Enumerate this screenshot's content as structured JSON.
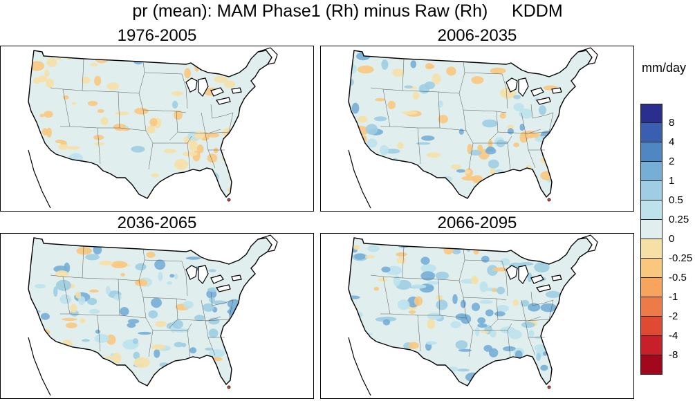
{
  "title": "pr (mean): MAM Phase1 (Rh) minus Raw (Rh)     KDDM",
  "units": "mm/day",
  "panels": [
    {
      "label": "1976-2005",
      "pattern": "mostly-dry"
    },
    {
      "label": "2006-2035",
      "pattern": "mixed"
    },
    {
      "label": "2036-2065",
      "pattern": "wetter-southeast"
    },
    {
      "label": "2066-2095",
      "pattern": "wettest-southeast"
    }
  ],
  "legend": {
    "colors": [
      "#2a2f8f",
      "#3a5fb0",
      "#4f86c3",
      "#76aed6",
      "#9fcde3",
      "#bde2ec",
      "#e0efee",
      "#f6e0a6",
      "#f9c77e",
      "#f8a45d",
      "#ee7a48",
      "#e04a33",
      "#c8202a",
      "#a1081e"
    ],
    "labels": [
      "8",
      "4",
      "2",
      "1",
      "0.5",
      "0.25",
      "0",
      "-0.25",
      "-0.5",
      "-1",
      "-2",
      "-4",
      "-8"
    ]
  }
}
